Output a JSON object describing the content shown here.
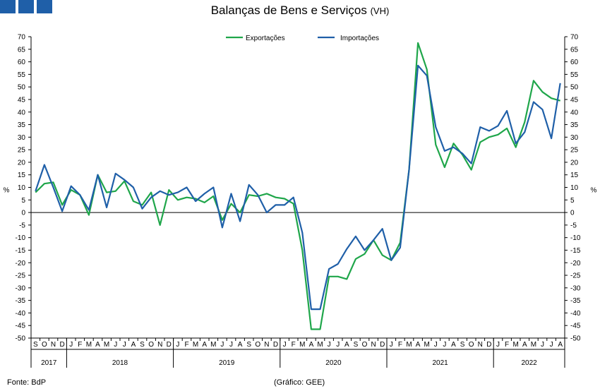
{
  "header": {
    "title": "Balanças de Bens e Serviços",
    "title_suffix": "(VH)",
    "logo_blocks": [
      "logo-block",
      "logo-block",
      "logo-block"
    ]
  },
  "footer": {
    "source": "Fonte: BdP",
    "credit": "(Gráfico: GEE)"
  },
  "colors": {
    "exportacoes": "#1fa64a",
    "importacoes": "#1f5fa8",
    "logo": "#1f5fa8"
  },
  "chart_data": {
    "type": "line",
    "title": "Balanças de Bens e Serviços (VH)",
    "ylabel_left": "%",
    "ylabel_right": "%",
    "ylim": [
      -50,
      70
    ],
    "ytick_step": 5,
    "grid": false,
    "zero_line": true,
    "legend_position": "top-center",
    "month_labels": [
      "S",
      "O",
      "N",
      "D",
      "J",
      "F",
      "M",
      "A",
      "M",
      "J",
      "J",
      "A",
      "S",
      "O",
      "N",
      "D",
      "J",
      "F",
      "M",
      "A",
      "M",
      "J",
      "J",
      "A",
      "S",
      "O",
      "N",
      "D",
      "J",
      "F",
      "M",
      "A",
      "M",
      "J",
      "J",
      "A",
      "S",
      "O",
      "N",
      "D",
      "J",
      "F",
      "M",
      "A",
      "M",
      "J",
      "J",
      "A",
      "S",
      "O",
      "N",
      "D",
      "J",
      "F",
      "M",
      "A",
      "M",
      "J",
      "J",
      "A"
    ],
    "years": [
      {
        "label": "2017",
        "start": 0,
        "count": 4
      },
      {
        "label": "2018",
        "start": 4,
        "count": 12
      },
      {
        "label": "2019",
        "start": 16,
        "count": 12
      },
      {
        "label": "2020",
        "start": 28,
        "count": 12
      },
      {
        "label": "2021",
        "start": 40,
        "count": 12
      },
      {
        "label": "2022",
        "start": 52,
        "count": 8
      }
    ],
    "series": [
      {
        "name": "Exportações",
        "color": "#1fa64a",
        "values": [
          8,
          11.5,
          12,
          3,
          9,
          7,
          -1,
          15,
          8,
          8.5,
          12.5,
          4.5,
          3,
          8,
          -5,
          9,
          5,
          6,
          5.5,
          4,
          6.5,
          -3,
          3.5,
          0,
          7,
          6.5,
          7.5,
          6,
          5.5,
          3.5,
          -15,
          -46.5,
          -46.5,
          -25.5,
          -25.5,
          -26.5,
          -18.5,
          -16.5,
          -11,
          -17,
          -19,
          -12,
          17,
          67.5,
          57,
          27,
          18,
          27.5,
          23,
          17,
          28,
          30,
          31,
          33.5,
          26,
          36,
          52.5,
          48,
          45.5,
          44.5
        ]
      },
      {
        "name": "Importações",
        "color": "#1f5fa8",
        "values": [
          8.5,
          19,
          10,
          0.5,
          10.5,
          7,
          1,
          15,
          2,
          15.5,
          13,
          10,
          1.5,
          6,
          8.5,
          7,
          8,
          10,
          4.5,
          7.5,
          10,
          -6,
          7.5,
          -3.5,
          11,
          7,
          0,
          3,
          3,
          6,
          -8,
          -38.5,
          -38.5,
          -22.5,
          -20.5,
          -14.5,
          -9.5,
          -15,
          -11,
          -6.5,
          -19,
          -14,
          17,
          58.5,
          54.5,
          34,
          24.5,
          26,
          23.5,
          19.5,
          34,
          32.5,
          34.5,
          40.5,
          27.5,
          32,
          44,
          41,
          29.5,
          51.5
        ]
      }
    ]
  }
}
